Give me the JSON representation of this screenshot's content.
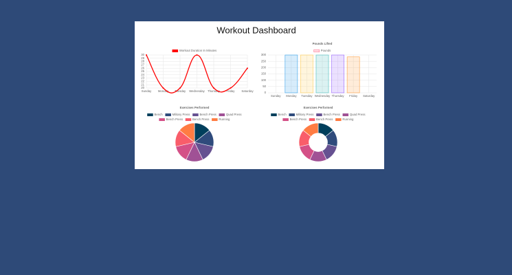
{
  "title": "Workout Dashboard",
  "chart_data": [
    {
      "type": "line",
      "categories": [
        "Sunday",
        "Monday",
        "Tuesday",
        "Wednesday",
        "Thursday",
        "Friday",
        "Saturday"
      ],
      "series": [
        {
          "name": "Workout Duration In Minutes",
          "color": "#ff0000",
          "values": [
            30,
            20,
            20,
            30,
            20,
            20,
            26
          ]
        }
      ],
      "ylim": [
        20,
        30
      ],
      "yticks": [
        20,
        21,
        22,
        23,
        24,
        25,
        26,
        27,
        28,
        29,
        30
      ],
      "grid": true
    },
    {
      "type": "bar",
      "title": "Pounds Lifted",
      "categories": [
        "Sunday",
        "Monday",
        "Tuesday",
        "Wednesday",
        "Thursday",
        "Friday",
        "Saturday"
      ],
      "series": [
        {
          "name": "Pounds",
          "values": [
            0,
            300,
            300,
            300,
            300,
            285,
            0
          ]
        }
      ],
      "colors": [
        "#ff6384",
        "#36a2eb",
        "#ffce56",
        "#4bc0c0",
        "#9966ff",
        "#ff9f40",
        "#c9cbcf"
      ],
      "ylim": [
        0,
        300
      ],
      "yticks": [
        0,
        50,
        100,
        150,
        200,
        250,
        300
      ],
      "grid": true
    },
    {
      "type": "pie",
      "title": "Exercises Performed",
      "categories": [
        "Bench",
        "Military Press",
        "Bench Press",
        "Quad Press",
        "Bench Press",
        "Bench Press",
        "Running"
      ],
      "values": [
        1,
        1,
        1,
        1,
        1,
        1,
        1
      ],
      "colors": [
        "#003f5c",
        "#2f4b7c",
        "#665191",
        "#a05195",
        "#d45087",
        "#f95d6a",
        "#ff7c43"
      ]
    },
    {
      "type": "doughnut",
      "title": "Exercises Performed",
      "categories": [
        "Bench",
        "Military Press",
        "Bench Press",
        "Quad Press",
        "Bench Press",
        "Bench Press",
        "Running"
      ],
      "values": [
        1,
        1,
        1,
        1,
        1,
        1,
        1
      ],
      "colors": [
        "#003f5c",
        "#2f4b7c",
        "#665191",
        "#a05195",
        "#d45087",
        "#f95d6a",
        "#ff7c43"
      ]
    }
  ]
}
